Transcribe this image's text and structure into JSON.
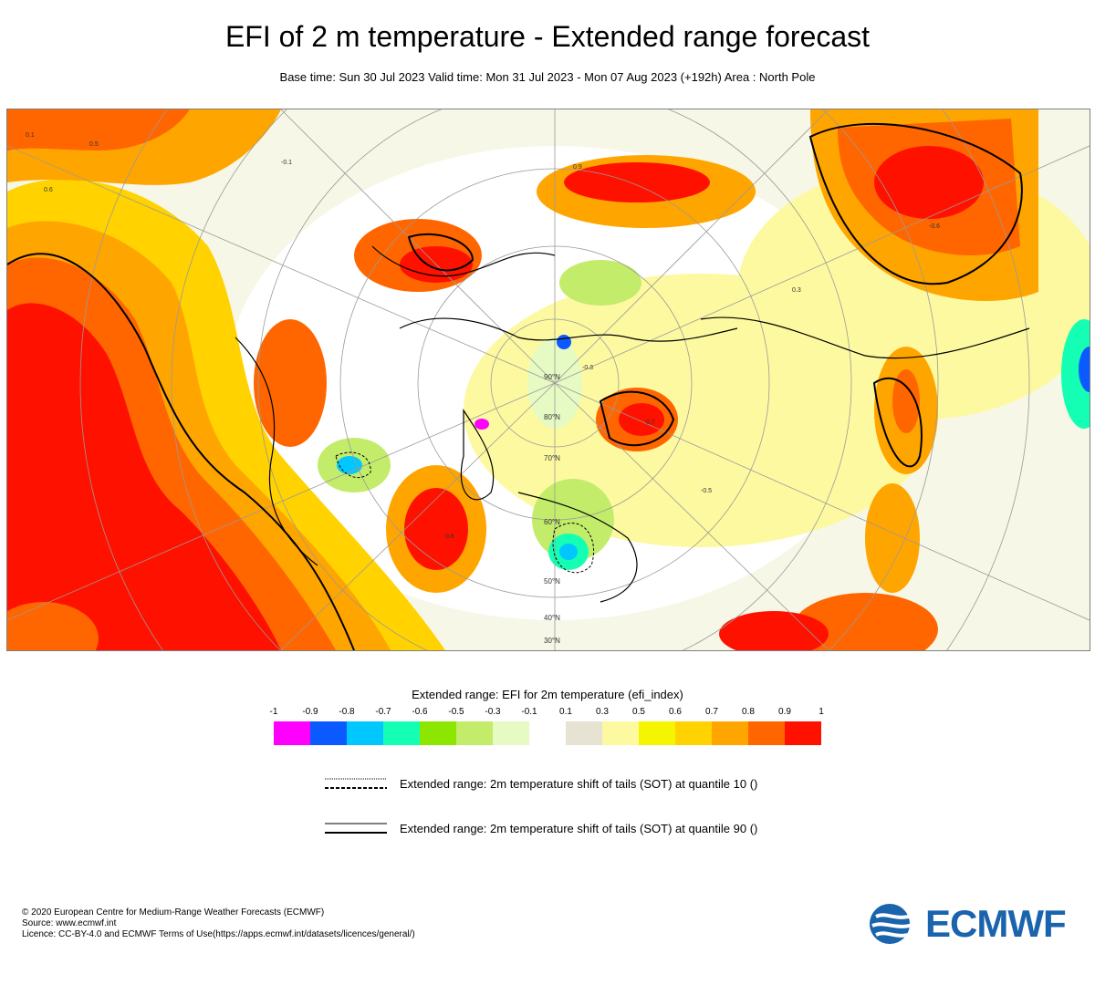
{
  "header": {
    "title": "EFI of 2 m temperature - Extended range forecast",
    "subtitle": "Base time: Sun 30 Jul 2023 Valid time: Mon 31 Jul 2023 - Mon 07 Aug 2023 (+192h) Area : North Pole"
  },
  "map": {
    "latitude_labels": [
      "90°N",
      "80°N",
      "70°N",
      "60°N",
      "50°N",
      "40°N",
      "30°N"
    ],
    "contour_labels": [
      "0.1",
      "0.3",
      "0.5",
      "0.6",
      "0.7",
      "0.8",
      "0.9",
      "-0.1",
      "-0.3",
      "-0.5",
      "-0.6"
    ]
  },
  "legend": {
    "title": "Extended range: EFI for 2m temperature (efi_index)",
    "ticks": [
      "-1",
      "-0.9",
      "-0.8",
      "-0.7",
      "-0.6",
      "-0.5",
      "-0.3",
      "-0.1",
      "0.1",
      "0.3",
      "0.5",
      "0.6",
      "0.7",
      "0.8",
      "0.9",
      "1"
    ],
    "bins": [
      {
        "from": -1,
        "to": -0.9,
        "color": "#ff00ff"
      },
      {
        "from": -0.9,
        "to": -0.8,
        "color": "#0a5aff"
      },
      {
        "from": -0.8,
        "to": -0.7,
        "color": "#00c8ff"
      },
      {
        "from": -0.7,
        "to": -0.6,
        "color": "#14ffb4"
      },
      {
        "from": -0.6,
        "to": -0.5,
        "color": "#8ce600"
      },
      {
        "from": -0.5,
        "to": -0.3,
        "color": "#c3ec6a"
      },
      {
        "from": -0.3,
        "to": -0.1,
        "color": "#e6fac3"
      },
      {
        "from": -0.1,
        "to": 0.1,
        "color": "#ffffff"
      },
      {
        "from": 0.1,
        "to": 0.3,
        "color": "#e6e3d3"
      },
      {
        "from": 0.3,
        "to": 0.5,
        "color": "#fdf9a0"
      },
      {
        "from": 0.5,
        "to": 0.6,
        "color": "#f5f500"
      },
      {
        "from": 0.6,
        "to": 0.7,
        "color": "#ffd200"
      },
      {
        "from": 0.7,
        "to": 0.8,
        "color": "#ffa500"
      },
      {
        "from": 0.8,
        "to": 0.9,
        "color": "#ff6600"
      },
      {
        "from": 0.9,
        "to": 1,
        "color": "#ff1100"
      }
    ],
    "sot_q10": "Extended range: 2m temperature shift of tails (SOT) at quantile 10 ()",
    "sot_q90": "Extended range: 2m temperature shift of tails (SOT) at quantile 90 ()"
  },
  "footer": {
    "copyright": "© 2020 European Centre for Medium-Range Weather Forecasts (ECMWF)",
    "source": "Source: www.ecmwf.int",
    "licence": "Licence: CC-BY-4.0 and ECMWF Terms of Use(https://apps.ecmwf.int/datasets/licences/general/)"
  },
  "logo": {
    "text": "ECMWF",
    "color": "#1a63ad"
  }
}
